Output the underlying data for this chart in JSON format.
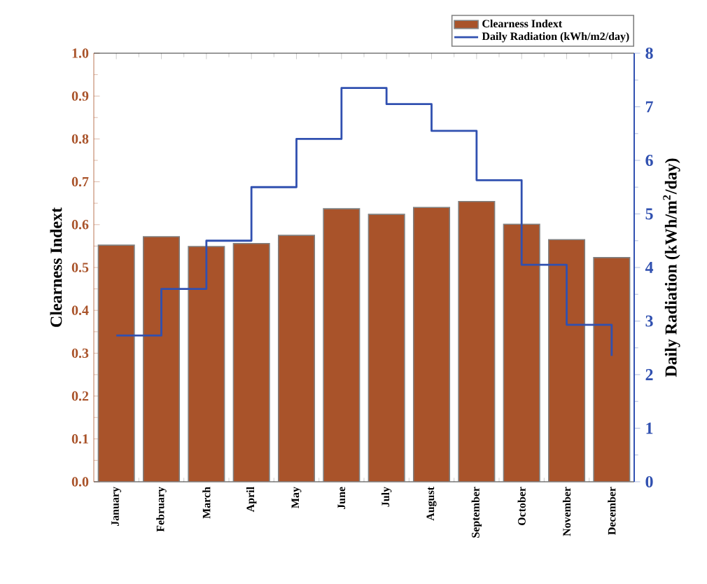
{
  "chart_data": {
    "type": "bar",
    "categories": [
      "January",
      "February",
      "March",
      "April",
      "May",
      "June",
      "July",
      "August",
      "September",
      "October",
      "November",
      "December"
    ],
    "series": [
      {
        "name": "Clearness Indext",
        "color": "#a9532a",
        "values": [
          0.552,
          0.572,
          0.549,
          0.556,
          0.575,
          0.637,
          0.624,
          0.64,
          0.654,
          0.601,
          0.565,
          0.523
        ]
      },
      {
        "name": "Daily Radiation (kWh/m2/day)",
        "type": "step",
        "axis": "y2",
        "color": "#3050b0",
        "values": [
          2.73,
          3.6,
          4.5,
          5.5,
          6.4,
          7.35,
          7.05,
          6.55,
          5.63,
          4.05,
          2.93,
          2.35
        ]
      }
    ],
    "ylabel": "Clearness Indext",
    "y2label": "Daily Radiation (kWh/m$^{2}$/day)",
    "ylim": [
      0,
      1
    ],
    "yticks": [
      {
        "value": 0,
        "label": "0.0"
      },
      {
        "value": 0.1,
        "label": "0.1"
      },
      {
        "value": 0.2,
        "label": "0.2"
      },
      {
        "value": 0.3,
        "label": "0.3"
      },
      {
        "value": 0.4,
        "label": "0.4"
      },
      {
        "value": 0.5,
        "label": "0.5"
      },
      {
        "value": 0.6,
        "label": "0.6"
      },
      {
        "value": 0.7,
        "label": "0.7"
      },
      {
        "value": 0.8,
        "label": "0.8"
      },
      {
        "value": 0.9,
        "label": "0.9"
      },
      {
        "value": 1,
        "label": "1.0"
      }
    ],
    "y2lim": [
      0,
      8
    ],
    "y2ticks": [
      0,
      1,
      2,
      3,
      4,
      5,
      6,
      7,
      8
    ],
    "legend": "top right",
    "grid": false
  }
}
